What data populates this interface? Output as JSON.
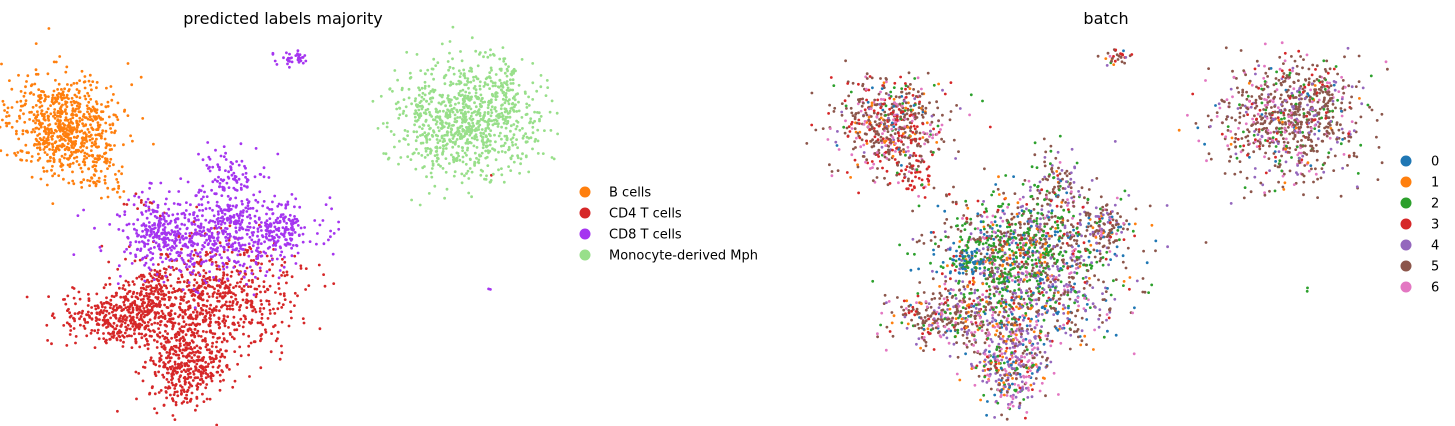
{
  "chart_data": [
    {
      "type": "scatter",
      "title": "predicted labels majority",
      "xlabel": "",
      "ylabel": "",
      "axes": "hidden",
      "grid": false,
      "legend_placement": "right",
      "colors": {
        "B cells": "#ff7f0e",
        "CD4 T cells": "#d62728",
        "CD8 T cells": "#a535f0",
        "Monocyte-derived Mph": "#98df8a"
      },
      "series": [
        {
          "name": "B cells",
          "clusters": [
            {
              "center": [
                65,
                125
              ],
              "spread": [
                28,
                24
              ],
              "count": 700
            },
            {
              "center": [
                95,
                170
              ],
              "spread": [
                10,
                12
              ],
              "count": 60
            },
            {
              "center": [
                112,
                190
              ],
              "spread": [
                5,
                4
              ],
              "count": 10
            }
          ]
        },
        {
          "name": "CD4 T cells",
          "clusters": [
            {
              "center": [
                215,
                295
              ],
              "spread": [
                40,
                28
              ],
              "count": 650
            },
            {
              "center": [
                120,
                318
              ],
              "spread": [
                28,
                14
              ],
              "count": 380
            },
            {
              "center": [
                185,
                365
              ],
              "spread": [
                20,
                22
              ],
              "count": 420
            },
            {
              "center": [
                150,
                290
              ],
              "spread": [
                12,
                14
              ],
              "count": 120
            },
            {
              "center": [
                140,
                205
              ],
              "spread": [
                8,
                5
              ],
              "count": 10
            },
            {
              "center": [
                490,
                175
              ],
              "spread": [
                1,
                1
              ],
              "count": 1
            }
          ]
        },
        {
          "name": "CD8 T cells",
          "clusters": [
            {
              "center": [
                215,
                235
              ],
              "spread": [
                48,
                22
              ],
              "count": 650
            },
            {
              "center": [
                230,
                185
              ],
              "spread": [
                15,
                18
              ],
              "count": 120
            },
            {
              "center": [
                282,
                228
              ],
              "spread": [
                12,
                10
              ],
              "count": 90
            },
            {
              "center": [
                160,
                232
              ],
              "spread": [
                14,
                12
              ],
              "count": 110
            },
            {
              "center": [
                295,
                58
              ],
              "spread": [
                8,
                4
              ],
              "count": 35
            },
            {
              "center": [
                488,
                289
              ],
              "spread": [
                3,
                1
              ],
              "count": 2
            }
          ]
        },
        {
          "name": "Monocyte-derived Mph",
          "clusters": [
            {
              "center": [
                465,
                120
              ],
              "spread": [
                36,
                28
              ],
              "count": 900
            },
            {
              "center": [
                500,
                90
              ],
              "spread": [
                12,
                12
              ],
              "count": 60
            }
          ]
        }
      ]
    },
    {
      "type": "scatter",
      "title": "batch",
      "xlabel": "",
      "ylabel": "",
      "axes": "hidden",
      "grid": false,
      "legend_placement": "right",
      "colors": {
        "0": "#1f77b4",
        "1": "#ff7f0e",
        "2": "#2ca02c",
        "3": "#d62728",
        "4": "#9467bd",
        "5": "#8c564b",
        "6": "#e377c2"
      },
      "series": [
        {
          "name": "0"
        },
        {
          "name": "1"
        },
        {
          "name": "2"
        },
        {
          "name": "3"
        },
        {
          "name": "4"
        },
        {
          "name": "5"
        },
        {
          "name": "6"
        }
      ],
      "clusters": [
        {
          "center": [
            890,
            125
          ],
          "spread": [
            28,
            24
          ],
          "count": 600,
          "weights": [
            0.02,
            0.08,
            0.05,
            0.2,
            0.05,
            0.45,
            0.15
          ]
        },
        {
          "center": [
            915,
            175
          ],
          "spread": [
            10,
            12
          ],
          "count": 50,
          "weights": [
            0.02,
            0.05,
            0.05,
            0.5,
            0.03,
            0.2,
            0.15
          ]
        },
        {
          "center": [
            1040,
            295
          ],
          "spread": [
            40,
            28
          ],
          "count": 600,
          "weights": [
            0.12,
            0.08,
            0.15,
            0.07,
            0.25,
            0.25,
            0.08
          ]
        },
        {
          "center": [
            945,
            318
          ],
          "spread": [
            28,
            14
          ],
          "count": 320,
          "weights": [
            0.05,
            0.08,
            0.08,
            0.08,
            0.1,
            0.45,
            0.16
          ]
        },
        {
          "center": [
            1010,
            365
          ],
          "spread": [
            20,
            22
          ],
          "count": 380,
          "weights": [
            0.08,
            0.08,
            0.15,
            0.05,
            0.3,
            0.14,
            0.2
          ]
        },
        {
          "center": [
            1035,
            235
          ],
          "spread": [
            48,
            22
          ],
          "count": 620,
          "weights": [
            0.12,
            0.05,
            0.2,
            0.07,
            0.1,
            0.4,
            0.06
          ]
        },
        {
          "center": [
            1000,
            265
          ],
          "spread": [
            22,
            24
          ],
          "count": 260,
          "weights": [
            0.05,
            0.08,
            0.55,
            0.05,
            0.07,
            0.12,
            0.08
          ]
        },
        {
          "center": [
            965,
            262
          ],
          "spread": [
            10,
            8
          ],
          "count": 80,
          "weights": [
            0.6,
            0.05,
            0.2,
            0.03,
            0.04,
            0.05,
            0.03
          ]
        },
        {
          "center": [
            1055,
            185
          ],
          "spread": [
            15,
            18
          ],
          "count": 110,
          "weights": [
            0.05,
            0.05,
            0.15,
            0.05,
            0.3,
            0.35,
            0.05
          ]
        },
        {
          "center": [
            1105,
            228
          ],
          "spread": [
            12,
            10
          ],
          "count": 80,
          "weights": [
            0.08,
            0.04,
            0.05,
            0.05,
            0.2,
            0.5,
            0.08
          ]
        },
        {
          "center": [
            1288,
            120
          ],
          "spread": [
            36,
            28
          ],
          "count": 800,
          "weights": [
            0.03,
            0.02,
            0.08,
            0.06,
            0.12,
            0.55,
            0.14
          ]
        },
        {
          "center": [
            1318,
            90
          ],
          "spread": [
            12,
            12
          ],
          "count": 60,
          "weights": [
            0.02,
            0.02,
            0.05,
            0.05,
            0.1,
            0.6,
            0.16
          ]
        },
        {
          "center": [
            1118,
            58
          ],
          "spread": [
            8,
            4
          ],
          "count": 30,
          "weights": [
            0.05,
            0.2,
            0.1,
            0.2,
            0.05,
            0.35,
            0.05
          ]
        },
        {
          "center": [
            1310,
            289
          ],
          "spread": [
            3,
            1
          ],
          "count": 2,
          "weights": [
            0,
            0,
            1,
            0,
            0,
            0,
            0
          ]
        }
      ]
    }
  ]
}
